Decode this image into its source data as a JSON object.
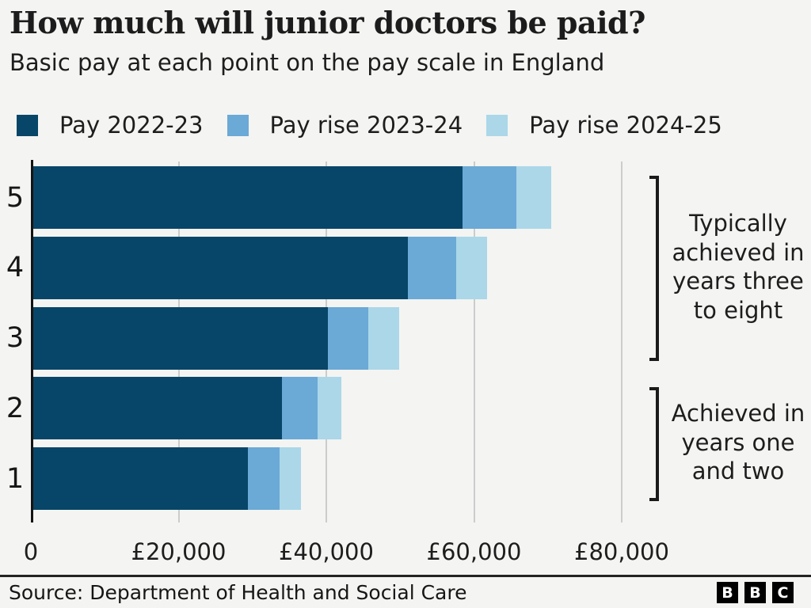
{
  "header": {
    "title": "How much will junior doctors be paid?",
    "subtitle": "Basic pay at each point on the pay scale in England"
  },
  "legend": {
    "items": [
      {
        "label": "Pay 2022-23",
        "color": "#074668"
      },
      {
        "label": "Pay rise 2023-24",
        "color": "#6ba9d6"
      },
      {
        "label": "Pay rise 2024-25",
        "color": "#abd7e9"
      }
    ]
  },
  "chart_data": {
    "type": "bar",
    "orientation": "horizontal",
    "stacked": true,
    "title": "How much will junior doctors be paid?",
    "subtitle": "Basic pay at each point on the pay scale in England",
    "categories": [
      "5",
      "4",
      "3",
      "2",
      "1"
    ],
    "series": [
      {
        "name": "Pay 2022-23",
        "color": "#074668",
        "values": [
          58398,
          51017,
          40257,
          34012,
          29384
        ]
      },
      {
        "name": "Pay rise 2023-24",
        "color": "#6ba9d6",
        "values": [
          7312,
          6553,
          5445,
          4802,
          4326
        ]
      },
      {
        "name": "Pay rise 2024-25",
        "color": "#abd7e9",
        "values": [
          4715,
          4255,
          4207,
          3194,
          2906
        ]
      }
    ],
    "totals": [
      70425,
      61825,
      49909,
      42008,
      36616
    ],
    "xlim": [
      0,
      80000
    ],
    "x_ticks": [
      {
        "value": 0,
        "label": "0"
      },
      {
        "value": 20000,
        "label": "£20,000"
      },
      {
        "value": 40000,
        "label": "£40,000"
      },
      {
        "value": 60000,
        "label": "£60,000"
      },
      {
        "value": 80000,
        "label": "£80,000"
      }
    ],
    "grid": "vertical-gridlines",
    "legend_position": "top"
  },
  "annotations": {
    "top": {
      "text": "Typically\nachieved in\nyears three\nto eight",
      "covers_categories": [
        "5",
        "4",
        "3"
      ]
    },
    "bottom": {
      "text": "Achieved in\nyears one\nand two",
      "covers_categories": [
        "2",
        "1"
      ]
    }
  },
  "footer": {
    "source": "Source: Department of Health and Social Care",
    "logo": [
      "B",
      "B",
      "C"
    ]
  },
  "colors": {
    "background": "#f4f4f2",
    "gridline": "#cccccc",
    "axis": "#141414",
    "text": "#1d1d1d"
  }
}
